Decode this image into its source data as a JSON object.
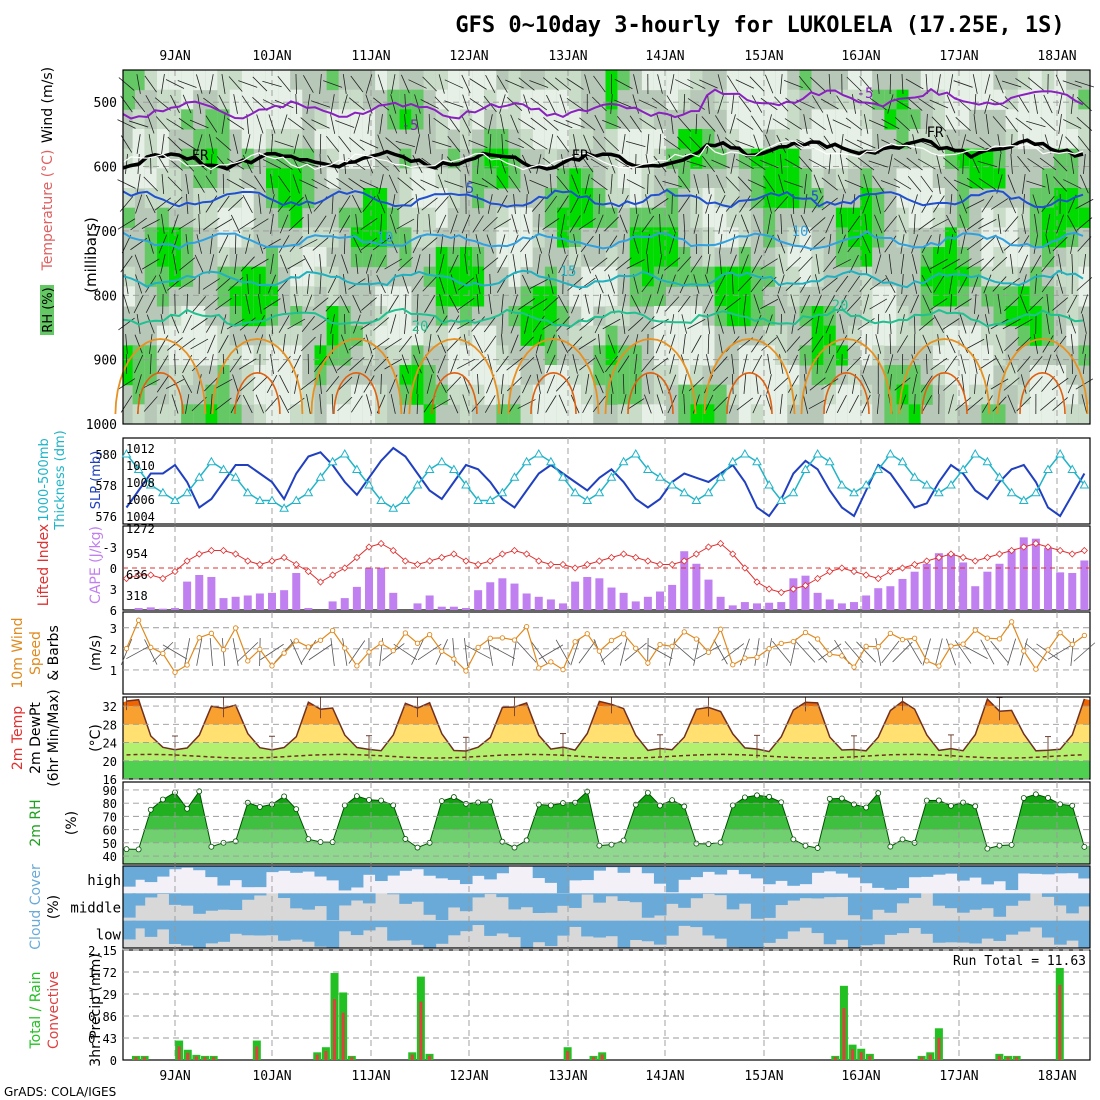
{
  "title": "GFS 0~10day 3-hourly for LUKOLELA (17.25E, 1S)",
  "footer": "GrADS: COLA/IGES",
  "dates": [
    "9JAN",
    "10JAN",
    "11JAN",
    "12JAN",
    "13JAN",
    "14JAN",
    "15JAN",
    "16JAN",
    "17JAN",
    "18JAN"
  ],
  "colors": {
    "rh_dark": "#00dc00",
    "rh_mid": "#64c864",
    "rh_light": "#c8dcc8",
    "rh_pale": "#e6f0e6",
    "slp": "#2040c0",
    "thickness": "#20b4c8",
    "cape": "#c080f0",
    "lifted": "#e03030",
    "wind": "#e08a1e",
    "temp_hot": "#f06400",
    "temp_warm": "#f8a030",
    "temp_mild": "#ffe070",
    "temp_cool": "#b4f070",
    "temp_cold": "#50d050",
    "cloud": "#6aaad8",
    "precip_total": "#22c022",
    "precip_conv": "#e04040"
  },
  "panels": {
    "upper": {
      "labels": [
        "RH (%)",
        "Temperature (°C)",
        "Wind (m/s)",
        "(millibars)"
      ],
      "yticks": [
        "500",
        "600",
        "700",
        "800",
        "900",
        "1000"
      ],
      "isotherm_labels": [
        "-5",
        "-5",
        "FR",
        "FR",
        "FR",
        "5",
        "5",
        "10",
        "10",
        "15",
        "20",
        "20"
      ]
    },
    "slp": {
      "labels": [
        "1000-500mb",
        "Thickness (dm)",
        "SLP (mb)"
      ],
      "left_ticks": [
        "580",
        "578",
        "576"
      ],
      "right_ticks": [
        "1012",
        "1010",
        "1008",
        "1006",
        "1004"
      ]
    },
    "cape": {
      "labels": [
        "Lifted Index",
        "CAPE (J/kg)"
      ],
      "left_ticks": [
        "-3",
        "0",
        "3",
        "6"
      ],
      "right_ticks": [
        "1272",
        "954",
        "636",
        "318"
      ]
    },
    "wind10": {
      "labels": [
        "10m Wind",
        "Speed",
        "& Barbs",
        "(m/s)"
      ],
      "ticks": [
        "3",
        "2",
        "1"
      ]
    },
    "temp2m": {
      "labels": [
        "2m Temp",
        "2m DewPt",
        "(6hr Min/Max)",
        "(°C)"
      ],
      "ticks": [
        "32",
        "28",
        "24",
        "20",
        "16"
      ]
    },
    "rh2m": {
      "labels": [
        "2m RH",
        "(%)"
      ],
      "ticks": [
        "90",
        "80",
        "70",
        "60",
        "50",
        "40"
      ]
    },
    "cloud": {
      "labels": [
        "Cloud Cover",
        "(%)"
      ],
      "levels": [
        "high",
        "middle",
        "low"
      ]
    },
    "precip": {
      "labels": [
        "Total / Rain",
        "Convective",
        "3hr Precip (mm)"
      ],
      "ticks": [
        "2.15",
        "1.72",
        "1.29",
        "0.86",
        "0.43",
        "0"
      ],
      "run_total": "Run Total = 11.63"
    }
  },
  "chart_data": {
    "type": "multi-panel meteogram",
    "x_dates": [
      "9JAN",
      "10JAN",
      "11JAN",
      "12JAN",
      "13JAN",
      "14JAN",
      "15JAN",
      "16JAN",
      "17JAN",
      "18JAN"
    ],
    "x_step_hours": 3,
    "slp_mb": [
      1009,
      1007.5,
      1005,
      1007,
      1009,
      1009,
      1010,
      1008,
      1005,
      1006,
      1008,
      1010,
      1010,
      1009,
      1008,
      1006,
      1009,
      1011,
      1011.5,
      1010,
      1008,
      1006.5,
      1008.5,
      1010.5,
      1012,
      1011,
      1009,
      1007,
      1006,
      1008,
      1010,
      1009.5,
      1008,
      1006,
      1005,
      1007,
      1009,
      1010,
      1009,
      1008,
      1007,
      1008.5,
      1009.5,
      1008,
      1006,
      1005,
      1006,
      1008,
      1009,
      1008.5,
      1008,
      1009,
      1010,
      1008,
      1005,
      1004,
      1006,
      1009,
      1010.5,
      1009.5,
      1007,
      1005,
      1004,
      1007,
      1010,
      1009,
      1007,
      1005,
      1005.5,
      1008,
      1010,
      1009,
      1007,
      1006,
      1008,
      1009.5,
      1010,
      1008,
      1005,
      1004,
      1006.5,
      1009,
      1009,
      1008
    ],
    "thickness_dm": [
      578.5,
      579.5,
      580,
      579,
      578,
      577.5,
      577,
      577.5,
      578.5,
      579.5,
      579,
      578.5,
      577.5,
      577,
      577,
      576.5,
      577,
      577.5,
      578.5,
      579.5,
      580,
      579,
      578,
      577,
      576.5,
      577,
      578,
      579,
      579.5,
      579,
      578,
      577,
      577,
      577.5,
      578.5,
      579.5,
      580,
      579.5,
      578.5,
      577.5,
      577,
      577.5,
      578.5,
      579.5,
      580,
      579,
      578.5,
      578,
      577.5,
      577,
      577.5,
      578.5,
      579.5,
      580,
      579.5,
      578,
      577,
      577.5,
      579,
      580,
      579.5,
      578,
      577.5,
      578,
      579,
      580,
      579.5,
      578.5,
      578,
      577.5,
      578,
      579,
      580,
      579.5,
      578.5,
      577.5,
      577,
      577.5,
      579,
      580,
      579,
      578,
      577,
      576.5
    ],
    "lifted_index": [
      1,
      1,
      1.5,
      1,
      1,
      1.5,
      0.5,
      -1,
      -2,
      -2.5,
      -2.5,
      -2,
      -1,
      -0.5,
      -1,
      -1.5,
      -0.5,
      0.5,
      2,
      1,
      0,
      -1.5,
      -3,
      -3.5,
      -2.5,
      -1,
      -0.5,
      -1,
      -1.5,
      -2,
      -1,
      -0.5,
      -1,
      -2,
      -2.5,
      -2,
      -1,
      -0.5,
      -0.5,
      0,
      -0.5,
      -1,
      -1.5,
      -2,
      -1.5,
      -1,
      -0.5,
      -0.5,
      -1,
      -2,
      -3,
      -3.5,
      -2,
      0,
      2,
      3,
      3.5,
      3,
      2.5,
      1.5,
      0.5,
      0,
      0.5,
      1,
      1.5,
      0.5,
      0,
      -0.5,
      -1,
      -1.5,
      -2,
      -1.5,
      -1,
      -1.5,
      -2,
      -2.5,
      -3,
      -3.5,
      -3,
      -2.5,
      -2,
      -2.5,
      -3,
      -3.5
    ],
    "cape_jkg": [
      80,
      70,
      40,
      30,
      40,
      20,
      30,
      430,
      530,
      500,
      180,
      200,
      220,
      250,
      260,
      300,
      560,
      30,
      0,
      130,
      180,
      350,
      640,
      640,
      260,
      0,
      100,
      220,
      50,
      50,
      30,
      300,
      420,
      480,
      400,
      250,
      200,
      160,
      100,
      430,
      500,
      480,
      340,
      260,
      130,
      200,
      280,
      380,
      890,
      700,
      460,
      200,
      70,
      120,
      100,
      110,
      120,
      480,
      520,
      260,
      160,
      100,
      120,
      220,
      330,
      360,
      470,
      580,
      700,
      860,
      860,
      720,
      360,
      580,
      700,
      920,
      1100,
      1080,
      940,
      570,
      560,
      750,
      900,
      1080
    ]
  }
}
